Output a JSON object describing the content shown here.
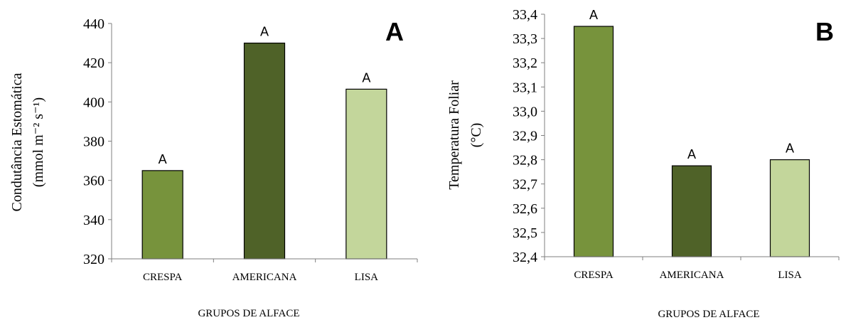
{
  "chart_data": [
    {
      "type": "bar",
      "panel_label": "A",
      "categories": [
        "CRESPA",
        "AMERICANA",
        "LISA"
      ],
      "values": [
        365,
        430,
        406.5
      ],
      "bar_colors": [
        "#77933c",
        "#4f6228",
        "#c3d69b"
      ],
      "data_labels": [
        "A",
        "A",
        "A"
      ],
      "xlabel": "GRUPOS DE ALFACE",
      "ylabel_line1": "Condutância    Estomática",
      "ylabel_line2": "(mmol m⁻² s⁻¹)",
      "ylim": [
        320,
        440
      ],
      "yticks": [
        320,
        340,
        360,
        380,
        400,
        420,
        440
      ],
      "ytick_labels": [
        "320",
        "340",
        "360",
        "380",
        "400",
        "420",
        "440"
      ],
      "grid": false
    },
    {
      "type": "bar",
      "panel_label": "B",
      "categories": [
        "CRESPA",
        "AMERICANA",
        "LISA"
      ],
      "values": [
        33.35,
        32.775,
        32.8
      ],
      "bar_colors": [
        "#77933c",
        "#4f6228",
        "#c3d69b"
      ],
      "data_labels": [
        "A",
        "A",
        "A"
      ],
      "xlabel": "GRUPOS DE ALFACE",
      "ylabel_line1": "Temperatura Foliar",
      "ylabel_line2": "(°C)",
      "ylim": [
        32.4,
        33.4
      ],
      "yticks": [
        32.4,
        32.5,
        32.6,
        32.7,
        32.8,
        32.9,
        33.0,
        33.1,
        33.2,
        33.3,
        33.4
      ],
      "ytick_labels": [
        "32,4",
        "32,5",
        "32,6",
        "32,7",
        "32,8",
        "32,9",
        "33,0",
        "33,1",
        "33,2",
        "33,3",
        "33,4"
      ],
      "grid": false
    }
  ]
}
